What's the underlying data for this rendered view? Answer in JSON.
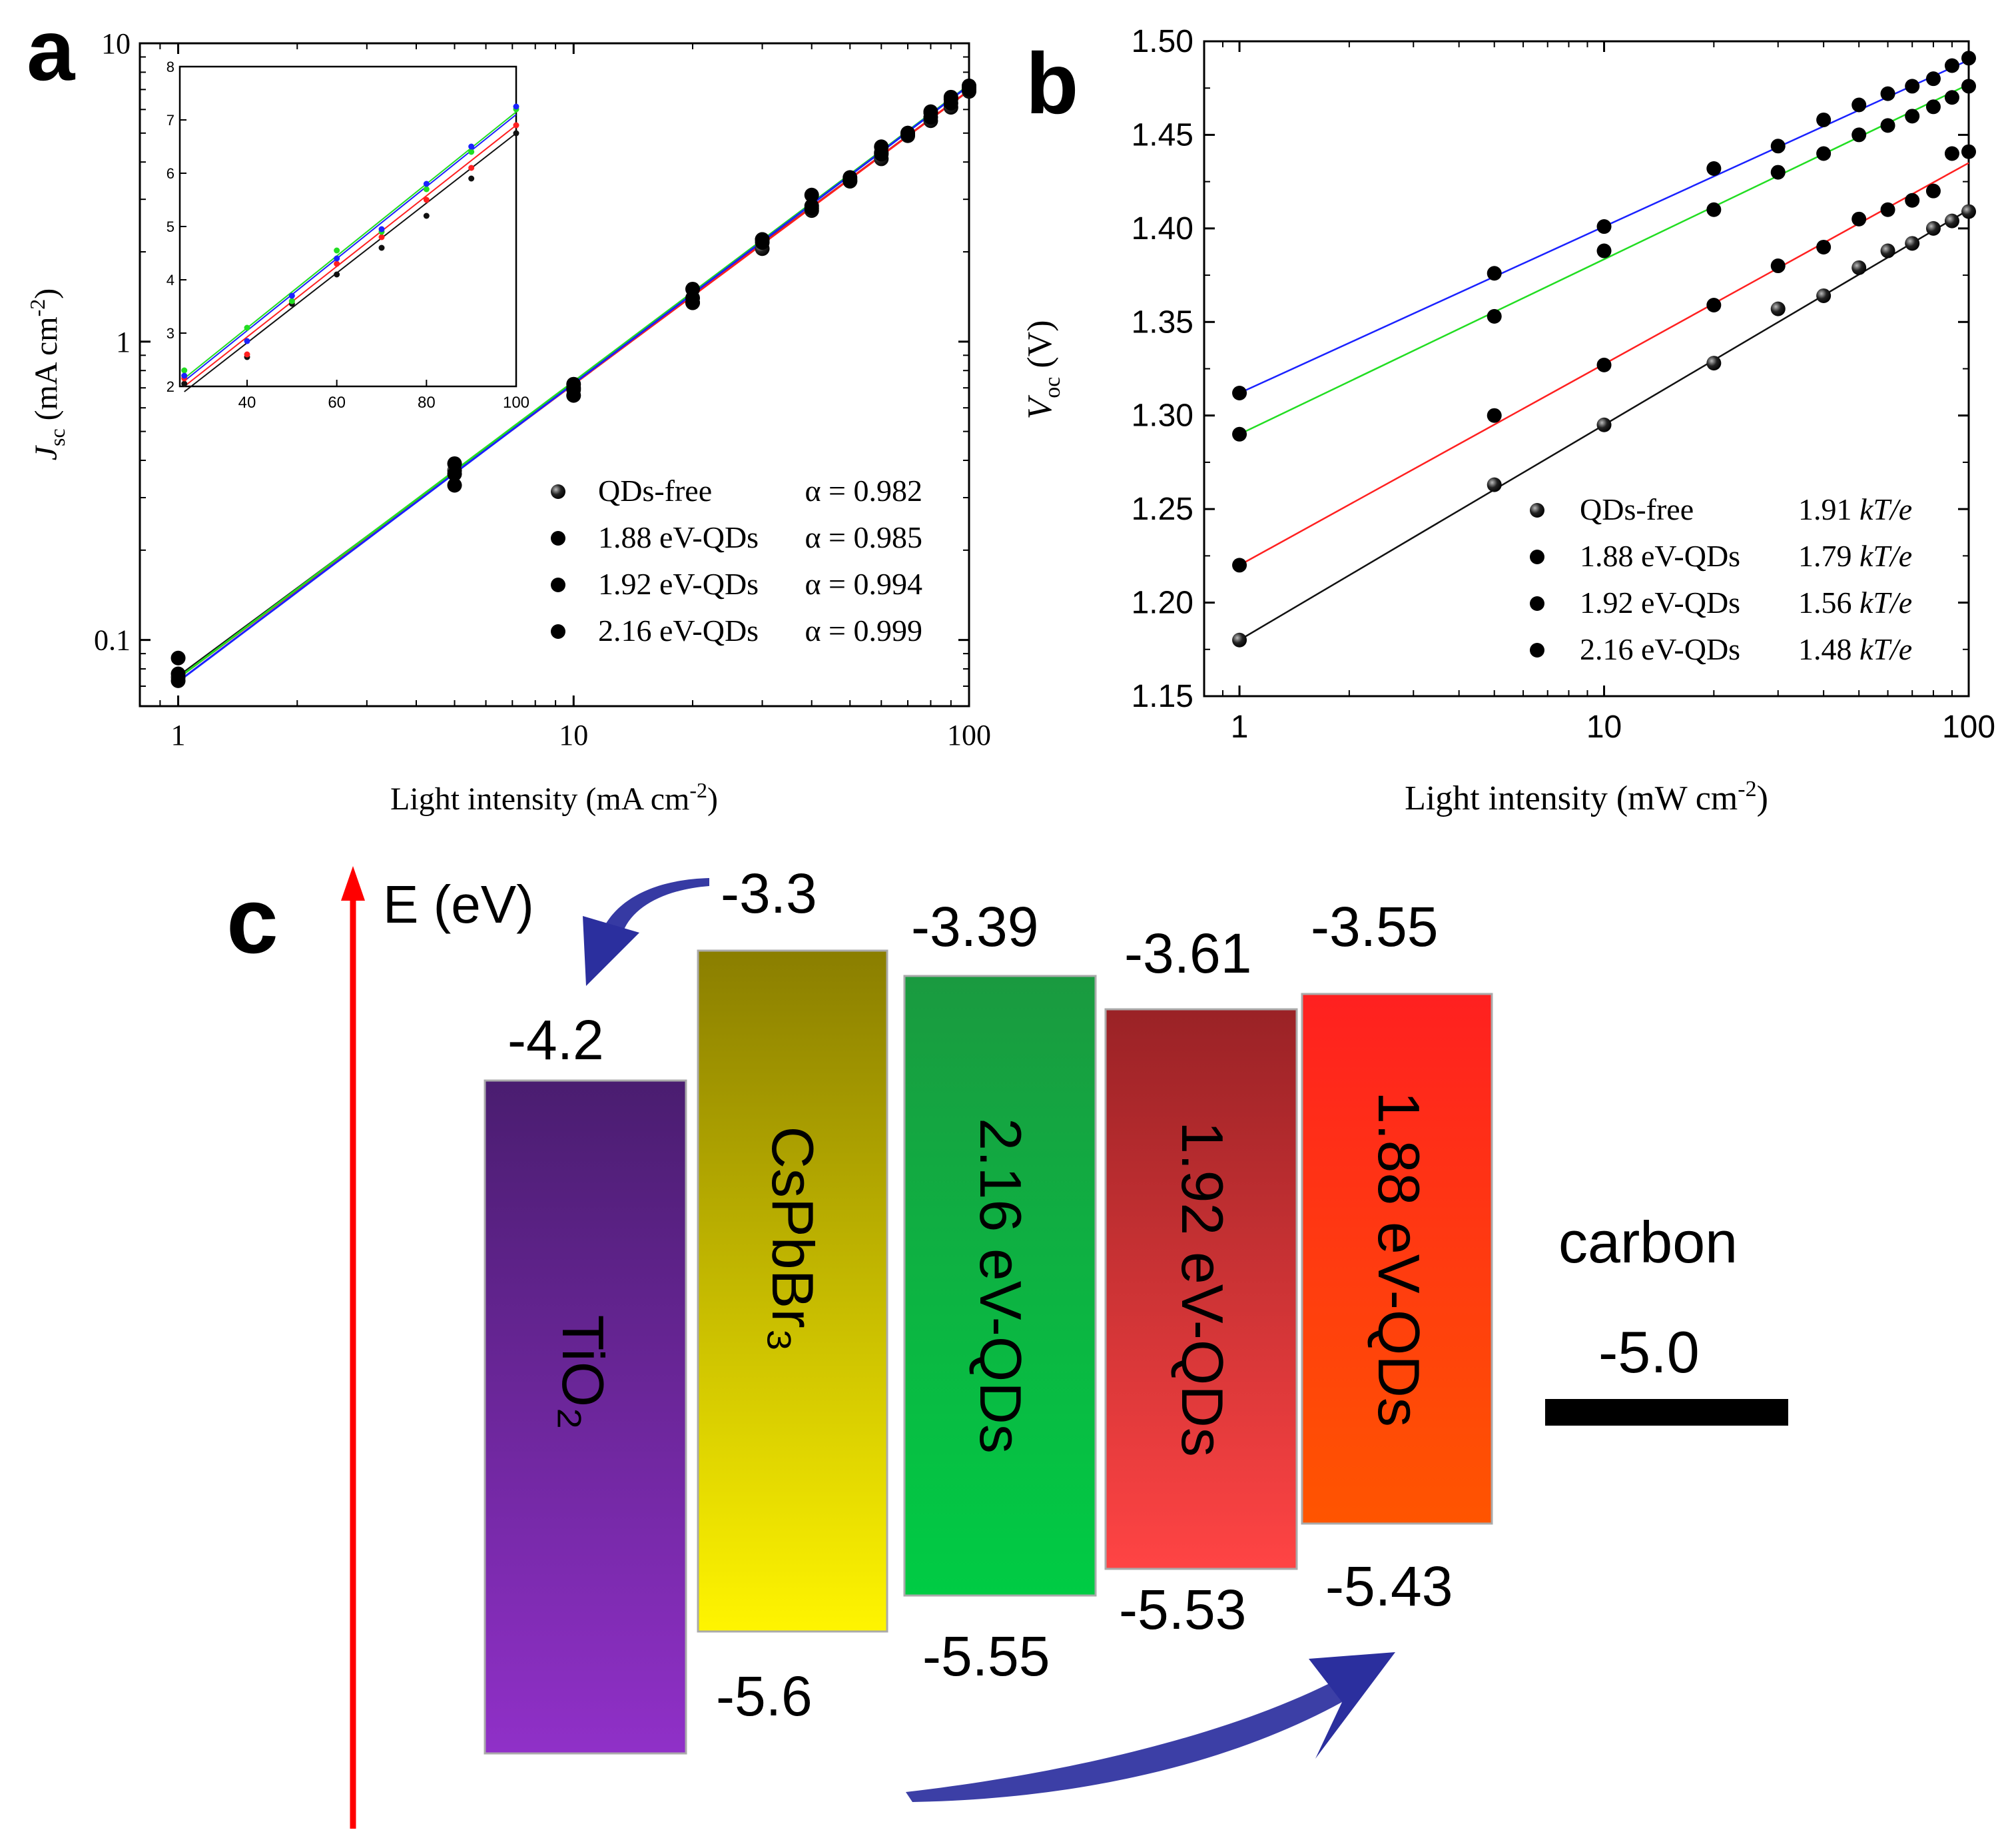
{
  "panel_labels": {
    "a": "a",
    "b": "b",
    "c": "c"
  },
  "colors": {
    "QDs-free": "#111111",
    "1.88 eV-QDs": "#ff2020",
    "1.92 eV-QDs": "#22dd22",
    "2.16 eV-QDs": "#1a22ff",
    "arrow_red": "#ff0000",
    "arrow_blue": "#2b2f9e"
  },
  "chart_data": [
    {
      "id": "a",
      "type": "scatter",
      "scale": "log-log",
      "title": "",
      "xlabel": "Light intensity (mA cm",
      "xlabel_sup": "-2",
      "xlabel_end": ")",
      "ylabel_sym": "J",
      "ylabel_sub": "sc",
      "ylabel_rest": " (mA cm",
      "ylabel_sup": "-2",
      "ylabel_end": ")",
      "xlim": [
        0.8,
        100
      ],
      "ylim": [
        0.06,
        10
      ],
      "xticks": [
        {
          "v": 1,
          "label": "1"
        },
        {
          "v": 10,
          "label": "10"
        },
        {
          "v": 100,
          "label": "100"
        }
      ],
      "yticks": [
        {
          "v": 0.1,
          "label": "0.1"
        },
        {
          "v": 1,
          "label": "1"
        },
        {
          "v": 10,
          "label": "10"
        }
      ],
      "x": [
        1,
        5,
        10,
        20,
        30,
        40,
        50,
        60,
        70,
        80,
        90,
        100
      ],
      "series": [
        {
          "name": "QDs-free",
          "param": "α = 0.982",
          "fit": [
            0.0755,
            0.982
          ],
          "values": [
            0.075,
            0.37,
            0.69,
            1.35,
            2.05,
            2.75,
            3.45,
            4.1,
            4.9,
            5.5,
            6.1,
            6.9
          ]
        },
        {
          "name": "1.88 eV-QDs",
          "param": "α = 0.985",
          "fit": [
            0.0745,
            0.985
          ],
          "values": [
            0.087,
            0.39,
            0.72,
            1.4,
            2.15,
            2.8,
            3.5,
            4.25,
            4.95,
            5.65,
            6.3,
            7.0
          ]
        },
        {
          "name": "1.92 eV-QDs",
          "param": "α = 0.994",
          "fit": [
            0.0745,
            0.994
          ],
          "values": [
            0.077,
            0.33,
            0.7,
            1.35,
            2.2,
            3.1,
            3.45,
            4.5,
            5.0,
            5.85,
            6.5,
            7.1
          ]
        },
        {
          "name": "2.16 eV-QDs",
          "param": "α = 0.999",
          "fit": [
            0.0725,
            0.999
          ],
          "values": [
            0.073,
            0.36,
            0.66,
            1.5,
            2.2,
            2.85,
            3.55,
            4.3,
            5.0,
            5.9,
            6.6,
            7.2
          ]
        }
      ],
      "inset": {
        "type": "scatter",
        "xlim": [
          25,
          100
        ],
        "ylim": [
          2,
          8
        ],
        "xticks": [
          {
            "v": 40,
            "label": "40"
          },
          {
            "v": 60,
            "label": "60"
          },
          {
            "v": 80,
            "label": "80"
          },
          {
            "v": 100,
            "label": "100"
          }
        ],
        "yticks": [
          {
            "v": 2,
            "label": "2"
          },
          {
            "v": 3,
            "label": "3"
          },
          {
            "v": 4,
            "label": "4"
          },
          {
            "v": 5,
            "label": "5"
          },
          {
            "v": 6,
            "label": "6"
          },
          {
            "v": 7,
            "label": "7"
          },
          {
            "v": 8,
            "label": "8"
          }
        ],
        "x": [
          26,
          40,
          50,
          60,
          70,
          80,
          90,
          100
        ],
        "series": [
          {
            "name": "QDs-free",
            "values": [
              2.05,
              2.55,
              3.55,
              4.1,
              4.6,
              5.2,
              5.9,
              6.75
            ]
          },
          {
            "name": "1.88 eV-QDs",
            "values": [
              2.15,
              2.6,
              3.6,
              4.3,
              4.8,
              5.5,
              6.1,
              6.9
            ]
          },
          {
            "name": "1.92 eV-QDs",
            "values": [
              2.3,
              3.1,
              3.6,
              4.55,
              4.9,
              5.7,
              6.4,
              7.2
            ]
          },
          {
            "name": "2.16 eV-QDs",
            "values": [
              2.2,
              2.85,
              3.7,
              4.4,
              4.95,
              5.8,
              6.5,
              7.25
            ]
          }
        ],
        "fits": [
          {
            "name": "QDs-free",
            "y0": 1.9,
            "y1": 6.75
          },
          {
            "name": "1.88 eV-QDs",
            "y0": 2.0,
            "y1": 6.9
          },
          {
            "name": "1.92 eV-QDs",
            "y0": 2.15,
            "y1": 7.15
          },
          {
            "name": "2.16 eV-QDs",
            "y0": 2.1,
            "y1": 7.1
          }
        ]
      }
    },
    {
      "id": "b",
      "type": "scatter",
      "scale": "log-x",
      "title": "",
      "xlabel": "Light intensity (mW cm",
      "xlabel_sup": "-2",
      "xlabel_end": ")",
      "ylabel_sym": "V",
      "ylabel_sub": "oc",
      "ylabel_rest": " (V)",
      "xlim": [
        0.8,
        100
      ],
      "ylim": [
        1.15,
        1.5
      ],
      "xticks": [
        {
          "v": 1,
          "label": "1"
        },
        {
          "v": 10,
          "label": "10"
        },
        {
          "v": 100,
          "label": "100"
        }
      ],
      "yticks": [
        {
          "v": 1.15,
          "label": "1.15"
        },
        {
          "v": 1.2,
          "label": "1.20"
        },
        {
          "v": 1.25,
          "label": "1.25"
        },
        {
          "v": 1.3,
          "label": "1.30"
        },
        {
          "v": 1.35,
          "label": "1.35"
        },
        {
          "v": 1.4,
          "label": "1.40"
        },
        {
          "v": 1.45,
          "label": "1.45"
        },
        {
          "v": 1.5,
          "label": "1.50"
        }
      ],
      "x": [
        1,
        5,
        10,
        20,
        30,
        40,
        50,
        60,
        70,
        80,
        90,
        100
      ],
      "series": [
        {
          "name": "QDs-free",
          "param": "1.91 kT/e",
          "fit": [
            1.18,
            1.41
          ],
          "values": [
            1.18,
            1.263,
            1.295,
            1.328,
            1.357,
            1.364,
            1.379,
            1.388,
            1.392,
            1.4,
            1.404,
            1.409
          ]
        },
        {
          "name": "1.88 eV-QDs",
          "param": "1.79 kT/e",
          "fit": [
            1.22,
            1.435
          ],
          "values": [
            1.22,
            1.3,
            1.327,
            1.359,
            1.38,
            1.39,
            1.405,
            1.41,
            1.415,
            1.42,
            1.44,
            1.441
          ]
        },
        {
          "name": "1.92 eV-QDs",
          "param": "1.56 kT/e",
          "fit": [
            1.29,
            1.477
          ],
          "values": [
            1.29,
            1.353,
            1.388,
            1.41,
            1.43,
            1.44,
            1.45,
            1.455,
            1.46,
            1.465,
            1.47,
            1.476
          ]
        },
        {
          "name": "2.16 eV-QDs",
          "param": "1.48 kT/e",
          "fit": [
            1.312,
            1.49
          ],
          "values": [
            1.312,
            1.376,
            1.401,
            1.432,
            1.444,
            1.458,
            1.466,
            1.472,
            1.476,
            1.48,
            1.487,
            1.491
          ]
        }
      ]
    },
    {
      "id": "c",
      "type": "diagram",
      "axis_label": "E (eV)",
      "bands": [
        {
          "name": "TiO₂",
          "top": "-4.2",
          "bottom": "",
          "color_top": "#4a1d70",
          "color_bottom": "#9030c8"
        },
        {
          "name": "CsPbBr₃",
          "top": "-3.3",
          "bottom": "-5.6",
          "color_top": "#8a7e00",
          "color_bottom": "#fff500"
        },
        {
          "name": "2.16 eV-QDs",
          "top": "-3.39",
          "bottom": "-5.55",
          "color_top": "#1a9a40",
          "color_bottom": "#00cc44"
        },
        {
          "name": "1.92 eV-QDs",
          "top": "-3.61",
          "bottom": "-5.53",
          "color_top": "#9a2226",
          "color_bottom": "#ff4444"
        },
        {
          "name": "1.88 eV-QDs",
          "top": "-3.55",
          "bottom": "-5.43",
          "color_top": "#ff2020",
          "color_bottom": "#ff5500"
        }
      ],
      "carbon": {
        "label": "carbon",
        "value": "-5.0"
      }
    }
  ]
}
